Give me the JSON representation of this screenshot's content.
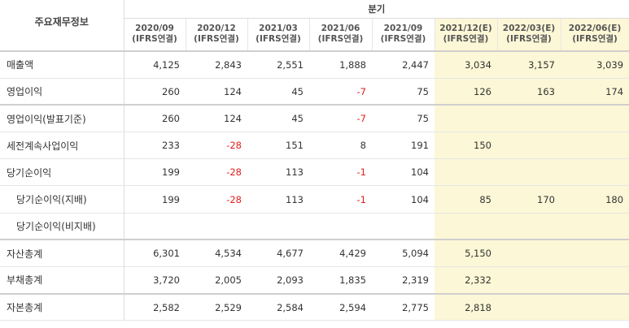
{
  "header": {
    "title": "주요재무정보",
    "group_label": "분기",
    "columns": [
      {
        "period": "2020/09",
        "basis": "(IFRS연결)"
      },
      {
        "period": "2020/12",
        "basis": "(IFRS연결)"
      },
      {
        "period": "2021/03",
        "basis": "(IFRS연결)"
      },
      {
        "period": "2021/06",
        "basis": "(IFRS연결)"
      },
      {
        "period": "2021/09",
        "basis": "(IFRS연결)"
      },
      {
        "period": "2021/12(E)",
        "basis": "(IFRS연결)"
      },
      {
        "period": "2022/03(E)",
        "basis": "(IFRS연결)"
      },
      {
        "period": "2022/06(E)",
        "basis": "(IFRS연결)"
      }
    ]
  },
  "rows": [
    {
      "label": "매출액",
      "values": [
        "4,125",
        "2,843",
        "2,551",
        "1,888",
        "2,447",
        "3,034",
        "3,157",
        "3,039"
      ]
    },
    {
      "label": "영업이익",
      "values": [
        "260",
        "124",
        "45",
        "-7",
        "75",
        "126",
        "163",
        "174"
      ]
    },
    {
      "label": "영업이익(발표기준)",
      "values": [
        "260",
        "124",
        "45",
        "-7",
        "75",
        "",
        "",
        ""
      ]
    },
    {
      "label": "세전계속사업이익",
      "values": [
        "233",
        "-28",
        "151",
        "8",
        "191",
        "150",
        "",
        ""
      ]
    },
    {
      "label": "당기순이익",
      "values": [
        "199",
        "-28",
        "113",
        "-1",
        "104",
        "",
        "",
        ""
      ]
    },
    {
      "label": "당기순이익(지배)",
      "values": [
        "199",
        "-28",
        "113",
        "-1",
        "104",
        "85",
        "170",
        "180"
      ]
    },
    {
      "label": "당기순이익(비지배)",
      "values": [
        "",
        "",
        "",
        "",
        "",
        "",
        "",
        ""
      ]
    },
    {
      "label": "자산총계",
      "values": [
        "6,301",
        "4,534",
        "4,677",
        "4,429",
        "5,094",
        "5,150",
        "",
        ""
      ]
    },
    {
      "label": "부채총계",
      "values": [
        "3,720",
        "2,005",
        "2,093",
        "1,835",
        "2,319",
        "2,332",
        "",
        ""
      ]
    },
    {
      "label": "자본총계",
      "values": [
        "2,582",
        "2,529",
        "2,584",
        "2,594",
        "2,775",
        "2,818",
        "",
        ""
      ]
    }
  ],
  "colors": {
    "negative": "#e02020",
    "estimate_bg": "#fcf7d6"
  }
}
